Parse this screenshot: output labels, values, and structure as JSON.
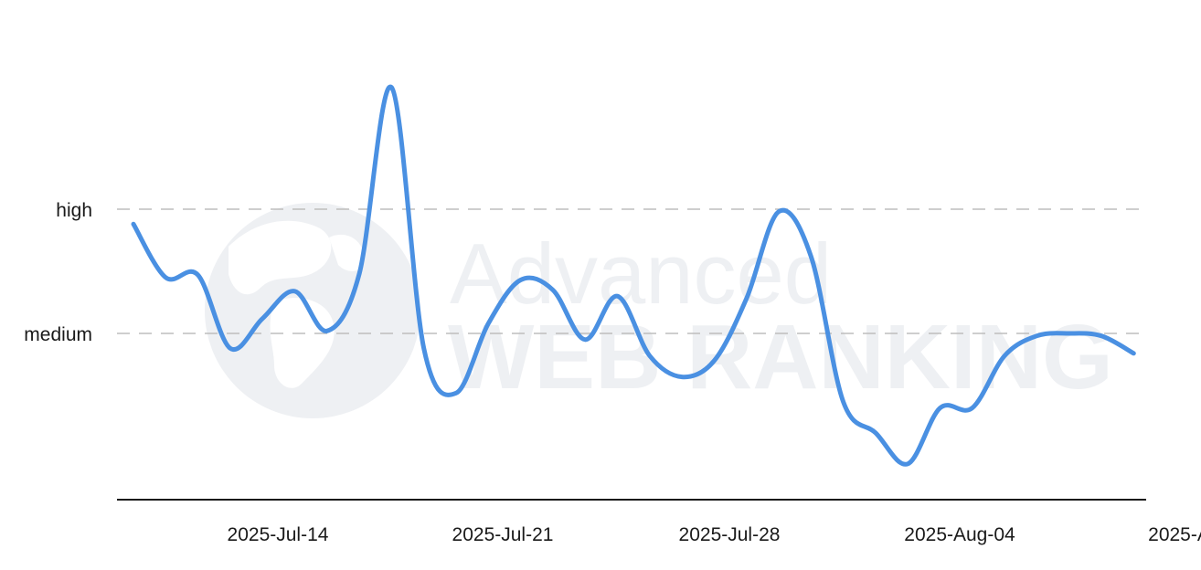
{
  "watermark": {
    "line1": "Advanced",
    "line2": "WEB RANKING",
    "icon": "globe-icon"
  },
  "chart_data": {
    "type": "line",
    "title": "",
    "xlabel": "",
    "ylabel": "",
    "x_tick_labels": [
      "2025-Jul-14",
      "2025-Jul-21",
      "2025-Jul-28",
      "2025-Aug-04",
      "2025-A"
    ],
    "y_tick_labels": [
      "high",
      "medium"
    ],
    "y_tick_values": [
      2,
      1
    ],
    "ylim": [
      -0.34,
      3
    ],
    "grid": true,
    "legend": "none",
    "colors": {
      "series": "#4a90e2",
      "grid": "#bdbdbd",
      "axis": "#1a1a1a"
    },
    "series": [
      {
        "values": [
          {
            "x": "2025-07-11",
            "y": 1.88
          },
          {
            "x": "2025-07-12",
            "y": 1.45
          },
          {
            "x": "2025-07-13",
            "y": 1.47
          },
          {
            "x": "2025-07-14",
            "y": 0.88
          },
          {
            "x": "2025-07-15",
            "y": 1.12
          },
          {
            "x": "2025-07-16",
            "y": 1.34
          },
          {
            "x": "2025-07-17",
            "y": 1.02
          },
          {
            "x": "2025-07-18",
            "y": 1.48
          },
          {
            "x": "2025-07-19",
            "y": 2.98
          },
          {
            "x": "2025-07-20",
            "y": 0.88
          },
          {
            "x": "2025-07-21",
            "y": 0.52
          },
          {
            "x": "2025-07-22",
            "y": 1.08
          },
          {
            "x": "2025-07-23",
            "y": 1.43
          },
          {
            "x": "2025-07-24",
            "y": 1.35
          },
          {
            "x": "2025-07-25",
            "y": 0.95
          },
          {
            "x": "2025-07-26",
            "y": 1.3
          },
          {
            "x": "2025-07-27",
            "y": 0.82
          },
          {
            "x": "2025-07-28",
            "y": 0.65
          },
          {
            "x": "2025-07-29",
            "y": 0.78
          },
          {
            "x": "2025-07-30",
            "y": 1.28
          },
          {
            "x": "2025-07-31",
            "y": 1.98
          },
          {
            "x": "2025-08-01",
            "y": 1.62
          },
          {
            "x": "2025-08-02",
            "y": 0.45
          },
          {
            "x": "2025-08-03",
            "y": 0.2
          },
          {
            "x": "2025-08-04",
            "y": -0.05
          },
          {
            "x": "2025-08-05",
            "y": 0.4
          },
          {
            "x": "2025-08-06",
            "y": 0.4
          },
          {
            "x": "2025-08-07",
            "y": 0.82
          },
          {
            "x": "2025-08-08",
            "y": 0.98
          },
          {
            "x": "2025-08-09",
            "y": 1.0
          },
          {
            "x": "2025-08-10",
            "y": 0.98
          },
          {
            "x": "2025-08-11",
            "y": 0.84
          }
        ]
      }
    ]
  }
}
